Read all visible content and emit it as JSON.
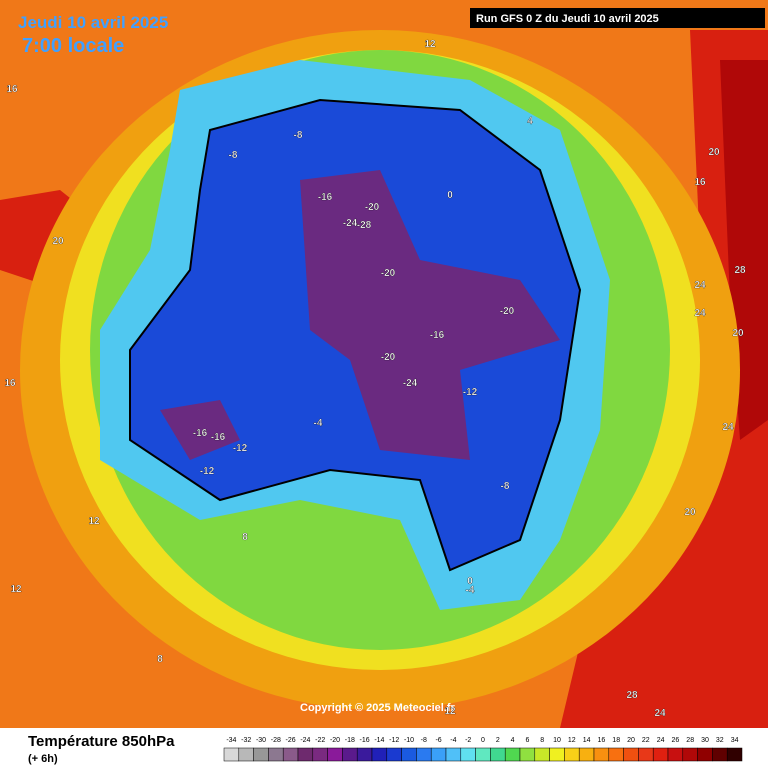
{
  "header": {
    "title": "Jeudi 10 avril 2025",
    "time": "7:00 locale",
    "run": "Run GFS 0 Z du Jeudi 10 avril 2025"
  },
  "copyright": "Copyright © 2025 Meteociel.fr",
  "footer": {
    "title": "Température 850hPa",
    "step": "(+ 6h)"
  },
  "legend": {
    "labels": [
      -34,
      -32,
      -30,
      -28,
      -26,
      -24,
      -22,
      -20,
      -18,
      -16,
      -14,
      -12,
      -10,
      -8,
      -6,
      -4,
      -2,
      0,
      2,
      4,
      6,
      8,
      10,
      12,
      14,
      16,
      18,
      20,
      22,
      24,
      26,
      28,
      30,
      32,
      34
    ],
    "colors": [
      "#d8d8d8",
      "#b8b8b8",
      "#989898",
      "#8c7890",
      "#8a5a8a",
      "#6e2a6e",
      "#7a2a80",
      "#8a1a9a",
      "#5a1a8c",
      "#3a1a9c",
      "#2020b8",
      "#1a3ad0",
      "#1a5ae0",
      "#2a7af0",
      "#3aa0f8",
      "#50c0f8",
      "#60e0f0",
      "#60e8c0",
      "#40d890",
      "#50d850",
      "#90e040",
      "#c8e828",
      "#f0f020",
      "#f8d018",
      "#f8b010",
      "#f89010",
      "#f87010",
      "#f05010",
      "#e83818",
      "#e02010",
      "#c81010",
      "#b00808",
      "#900000",
      "#600000",
      "#300000"
    ]
  },
  "contour_labels": [
    16,
    20,
    -8,
    -8,
    -16,
    -20,
    -24,
    -28,
    -20,
    -20,
    -16,
    -20,
    -24,
    -12,
    -16,
    -16,
    -12,
    -12,
    -8,
    -4,
    0,
    4,
    8,
    12,
    12,
    16,
    20,
    24,
    28,
    24,
    20,
    24,
    28,
    24,
    20,
    12,
    8,
    12,
    16,
    -4,
    0
  ]
}
